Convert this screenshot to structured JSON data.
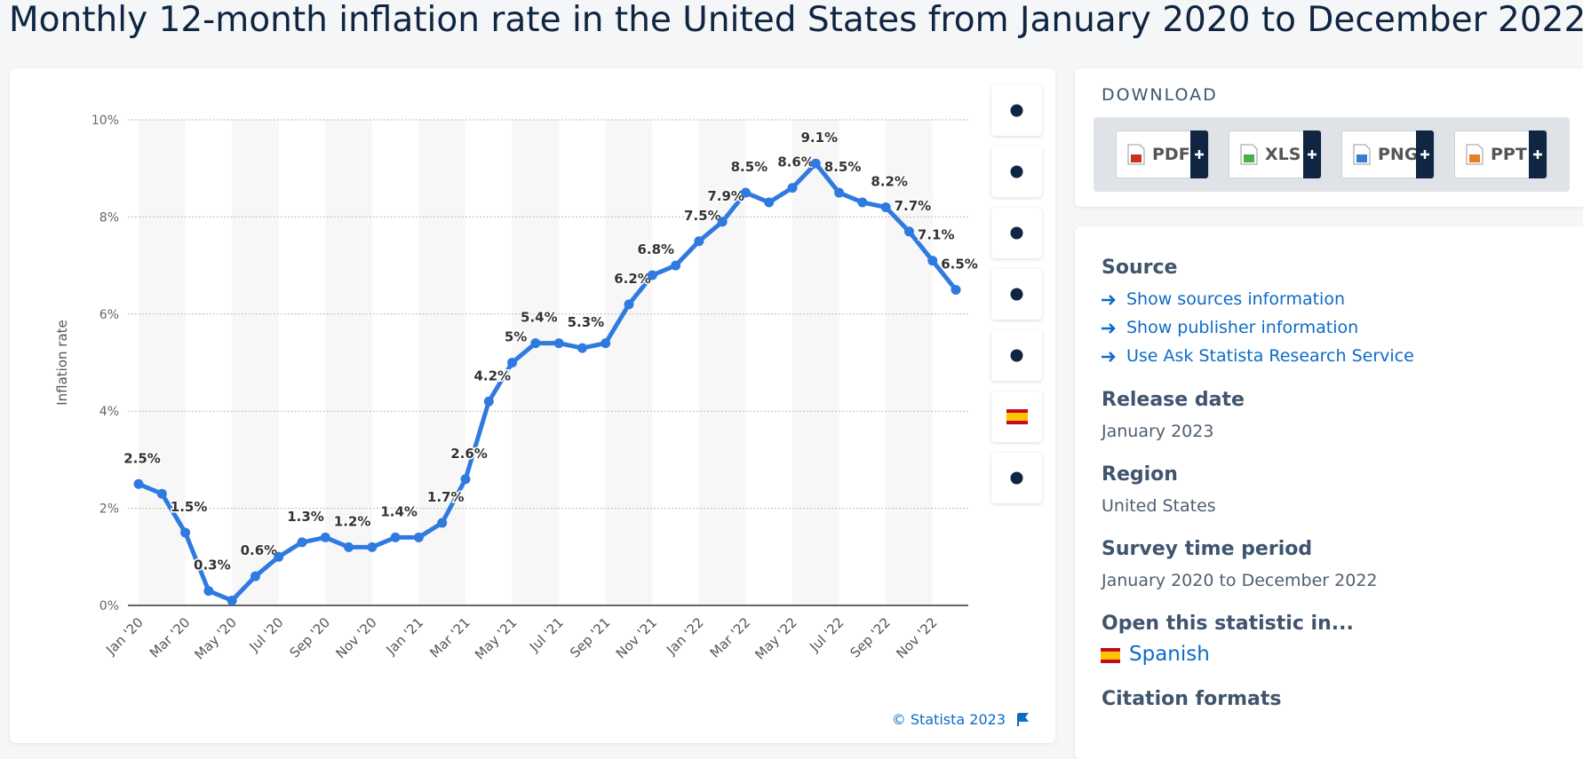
{
  "chart_data": {
    "type": "line",
    "title": "Monthly 12-month inflation rate in the United States from January 2020 to December 2022",
    "y_label": "Inflation rate",
    "categories": [
      "Jan '20",
      null,
      "Mar '20",
      null,
      "May '20",
      null,
      "Jul '20",
      null,
      "Sep '20",
      null,
      "Nov '20",
      null,
      "Jan '21",
      null,
      "Mar '21",
      null,
      "May '21",
      null,
      "Jul '21",
      null,
      "Sep '21",
      null,
      "Nov '21",
      null,
      "Jan '22",
      null,
      "Mar '22",
      null,
      "May '22",
      null,
      "Jul '22",
      null,
      "Sep '22",
      null,
      "Nov '22",
      null
    ],
    "series": [
      {
        "name": "Inflation rate",
        "color": "#2f7ae0",
        "values": [
          2.5,
          2.3,
          1.5,
          0.3,
          0.1,
          0.6,
          1.0,
          1.3,
          1.4,
          1.2,
          1.2,
          1.4,
          1.4,
          1.7,
          2.6,
          4.2,
          5.0,
          5.4,
          5.4,
          5.3,
          5.4,
          6.2,
          6.8,
          7.0,
          7.5,
          7.9,
          8.5,
          8.3,
          8.6,
          9.1,
          8.5,
          8.3,
          8.2,
          7.7,
          7.1,
          6.5
        ],
        "value_labels": [
          "2.5%",
          null,
          "1.5%",
          "0.3%",
          null,
          "0.6%",
          null,
          "1.3%",
          null,
          "1.2%",
          null,
          "1.4%",
          null,
          "1.7%",
          "2.6%",
          "4.2%",
          "5%",
          "5.4%",
          null,
          "5.3%",
          null,
          "6.2%",
          "6.8%",
          null,
          "7.5%",
          "7.9%",
          "8.5%",
          null,
          "8.6%",
          "9.1%",
          "8.5%",
          null,
          "8.2%",
          "7.7%",
          "7.1%",
          "6.5%"
        ]
      }
    ],
    "ylim": [
      0,
      10
    ],
    "yticks": [
      {
        "value": 0,
        "label": "0%"
      },
      {
        "value": 2,
        "label": "2%"
      },
      {
        "value": 4,
        "label": "4%"
      },
      {
        "value": 6,
        "label": "6%"
      },
      {
        "value": 8,
        "label": "8%"
      },
      {
        "value": 10,
        "label": "10%"
      }
    ],
    "grid": true,
    "credit": "© Statista 2023"
  },
  "sidebar": {
    "download_heading": "DOWNLOAD",
    "downloads": [
      "PDF",
      "XLS",
      "PNG",
      "PPT"
    ],
    "sections": [
      {
        "heading": "Source",
        "links": [
          "Show sources information",
          "Show publisher information",
          "Use Ask Statista Research Service"
        ]
      },
      {
        "heading": "Release date",
        "text": "January 2023"
      },
      {
        "heading": "Region",
        "text": "United States"
      },
      {
        "heading": "Survey time period",
        "text": "January 2020 to December 2022"
      },
      {
        "heading": "Open this statistic in...",
        "links": [
          "Spanish"
        ]
      },
      {
        "heading": "Citation formats"
      }
    ]
  }
}
